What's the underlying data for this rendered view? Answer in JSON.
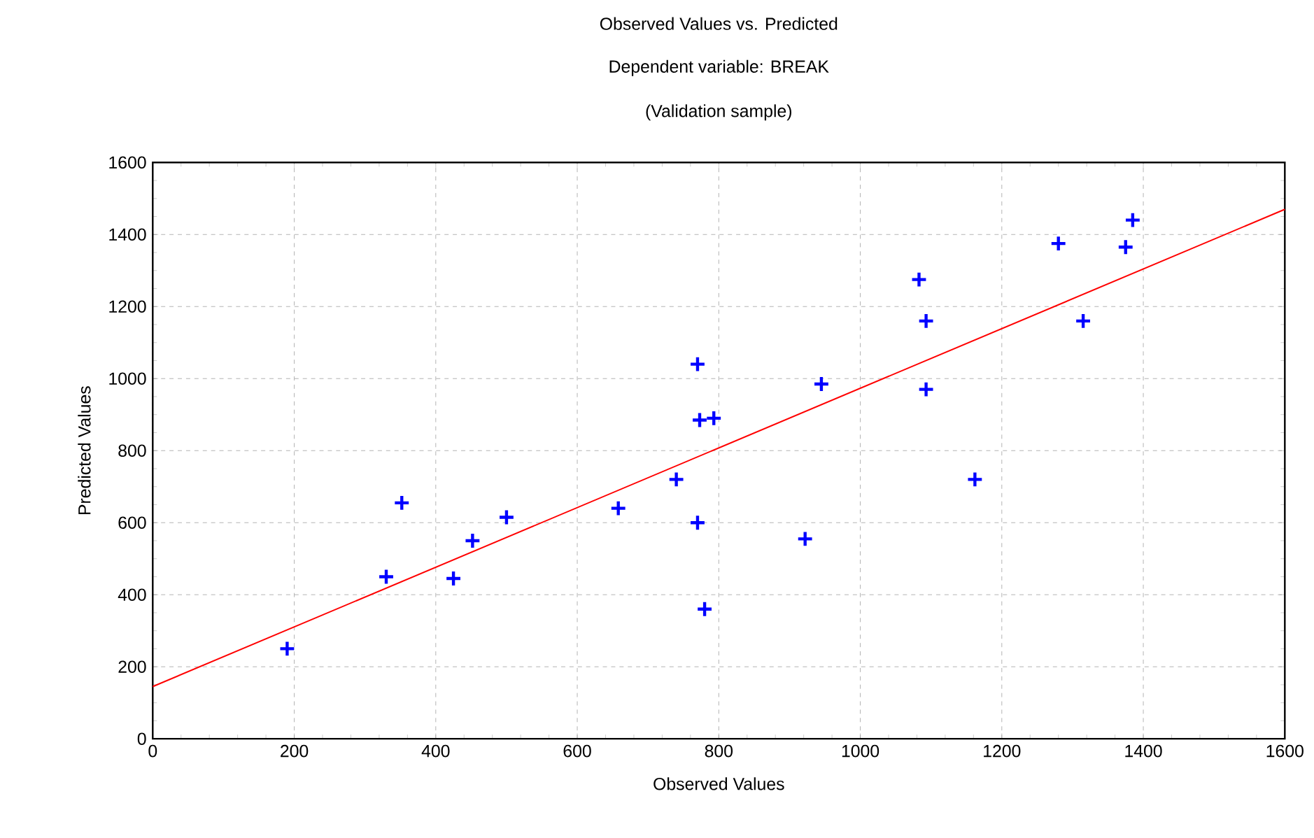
{
  "chart_data": {
    "type": "scatter",
    "title": "Observed Values vs. Predicted",
    "subtitle": "Dependent variable: BREAK",
    "annotations": [
      "(Validation sample)"
    ],
    "xlabel": "Observed Values",
    "ylabel": "Predicted Values",
    "xlim": [
      0,
      1600
    ],
    "ylim": [
      0,
      1600
    ],
    "xticks": [
      0,
      200,
      400,
      600,
      800,
      1000,
      1200,
      1400,
      1600
    ],
    "yticks": [
      0,
      200,
      400,
      600,
      800,
      1000,
      1200,
      1400,
      1600
    ],
    "grid": true,
    "marker": "cross",
    "series": [
      {
        "color": "#0000ff",
        "x": [
          190,
          330,
          352,
          425,
          452,
          500,
          658,
          740,
          770,
          770,
          773,
          793,
          780,
          922,
          945,
          1083,
          1093,
          1093,
          1162,
          1280,
          1315,
          1375,
          1385
        ],
        "values": [
          250,
          450,
          655,
          445,
          550,
          615,
          640,
          720,
          600,
          1040,
          885,
          890,
          360,
          555,
          985,
          1275,
          1160,
          970,
          720,
          1375,
          1160,
          1365,
          1440
        ]
      },
      {
        "type": "line",
        "color": "#ff0000",
        "marker": "none",
        "line_style": "solid",
        "x": [
          0,
          1600
        ],
        "values": [
          145,
          1470
        ]
      }
    ]
  }
}
